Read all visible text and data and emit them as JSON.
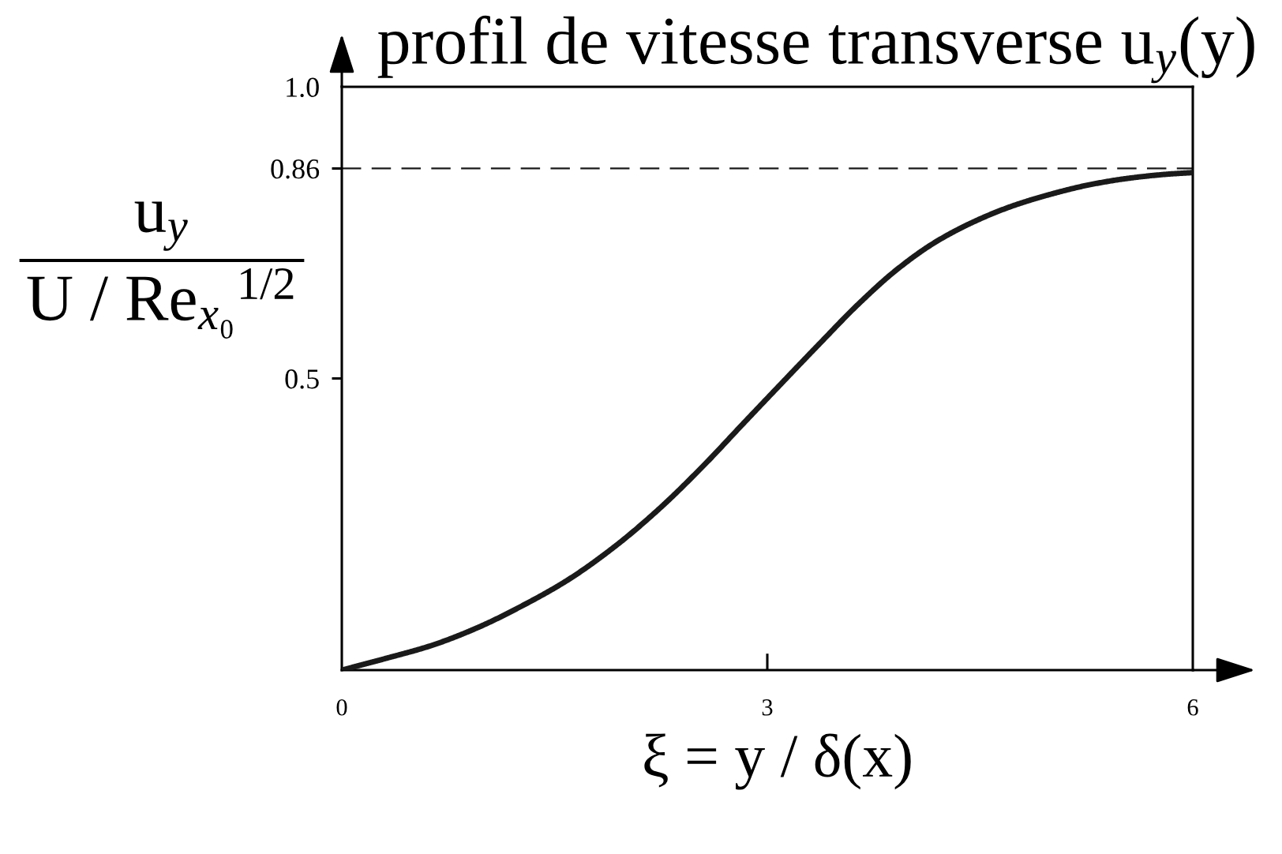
{
  "chart_data": {
    "type": "line",
    "title": "profil de vitesse transverse u$_{y}$(y)",
    "xlabel": "ξ = y / δ(x)",
    "ylabel": "u$_{y}$\nU / Re$_{x₀}$$^{1/2}$",
    "x": [
      0,
      0.31,
      0.63,
      0.95,
      1.27,
      1.59,
      1.92,
      2.24,
      2.56,
      2.82,
      3.09,
      3.37,
      3.64,
      3.91,
      4.18,
      4.45,
      4.72,
      5,
      5.27,
      5.54,
      5.81,
      6
    ],
    "series": [
      {
        "color": "#1a1a1a",
        "values": [
          0,
          0.02,
          0.042,
          0.072,
          0.11,
          0.154,
          0.211,
          0.277,
          0.353,
          0.42,
          0.489,
          0.56,
          0.627,
          0.686,
          0.733,
          0.768,
          0.795,
          0.816,
          0.832,
          0.843,
          0.85,
          0.853
        ]
      }
    ],
    "xlim": [
      0,
      6
    ],
    "ylim": [
      0,
      1
    ],
    "xticks": [
      0,
      3,
      6
    ],
    "yticks": [
      0.5,
      0.86,
      {
        "value": 1,
        "label": "1.0"
      }
    ],
    "ref_lines": [
      {
        "axis": "y",
        "value": 0.86,
        "color": "#1a1a1a",
        "line_style": "dashed"
      }
    ],
    "line_style": "solid"
  }
}
